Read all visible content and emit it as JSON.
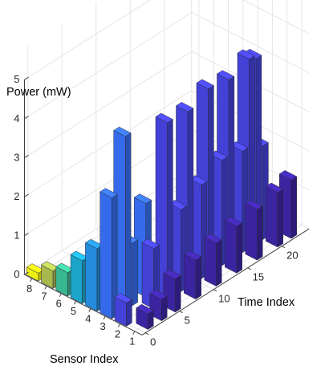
{
  "chart_data": {
    "type": "bar3d",
    "zlabel": "Power (mW)",
    "xlabel": "Sensor Index",
    "ylabel": "Time Index",
    "x_ticks": [
      "8",
      "7",
      "6",
      "5",
      "4",
      "3",
      "2",
      "1"
    ],
    "y_ticks": [
      "0",
      "5",
      "10",
      "15",
      "20"
    ],
    "z_ticks": [
      "0",
      "1",
      "2",
      "3",
      "4",
      "5"
    ],
    "zlim": [
      0,
      5
    ],
    "grid": true,
    "colormap": "parula",
    "bars": [
      {
        "sensor": 8,
        "time": 0,
        "value": 0.2
      },
      {
        "sensor": 7,
        "time": 0,
        "value": 0.45
      },
      {
        "sensor": 6,
        "time": 0,
        "value": 0.6
      },
      {
        "sensor": 5,
        "time": 0,
        "value": 1.1
      },
      {
        "sensor": 5,
        "time": 1,
        "value": 0.7
      },
      {
        "sensor": 4,
        "time": 0,
        "value": 1.6
      },
      {
        "sensor": 3,
        "time": 2,
        "value": 4.45
      },
      {
        "sensor": 3,
        "time": 0,
        "value": 3.1
      },
      {
        "sensor": 3,
        "time": 3,
        "value": 1.6
      },
      {
        "sensor": 3,
        "time": 5,
        "value": 2.4
      },
      {
        "sensor": 2,
        "time": 0,
        "value": 0.6
      },
      {
        "sensor": 2,
        "time": 4,
        "value": 1.55
      },
      {
        "sensor": 2,
        "time": 6,
        "value": 4.55
      },
      {
        "sensor": 2,
        "time": 8,
        "value": 2.1
      },
      {
        "sensor": 2,
        "time": 9,
        "value": 4.5
      },
      {
        "sensor": 2,
        "time": 11,
        "value": 2.4
      },
      {
        "sensor": 2,
        "time": 12,
        "value": 4.75
      },
      {
        "sensor": 2,
        "time": 14,
        "value": 2.7
      },
      {
        "sensor": 2,
        "time": 15,
        "value": 4.65
      },
      {
        "sensor": 2,
        "time": 17,
        "value": 2.6
      },
      {
        "sensor": 2,
        "time": 18,
        "value": 4.85
      },
      {
        "sensor": 2,
        "time": 19,
        "value": 4.75
      },
      {
        "sensor": 2,
        "time": 20,
        "value": 2.4
      },
      {
        "sensor": 1,
        "time": 1,
        "value": 0.4
      },
      {
        "sensor": 1,
        "time": 3,
        "value": 0.55
      },
      {
        "sensor": 1,
        "time": 5,
        "value": 0.85
      },
      {
        "sensor": 1,
        "time": 8,
        "value": 1.0
      },
      {
        "sensor": 1,
        "time": 11,
        "value": 1.1
      },
      {
        "sensor": 1,
        "time": 14,
        "value": 1.2
      },
      {
        "sensor": 1,
        "time": 17,
        "value": 1.3
      },
      {
        "sensor": 1,
        "time": 20,
        "value": 1.4
      },
      {
        "sensor": 1,
        "time": 22,
        "value": 1.5
      }
    ]
  }
}
